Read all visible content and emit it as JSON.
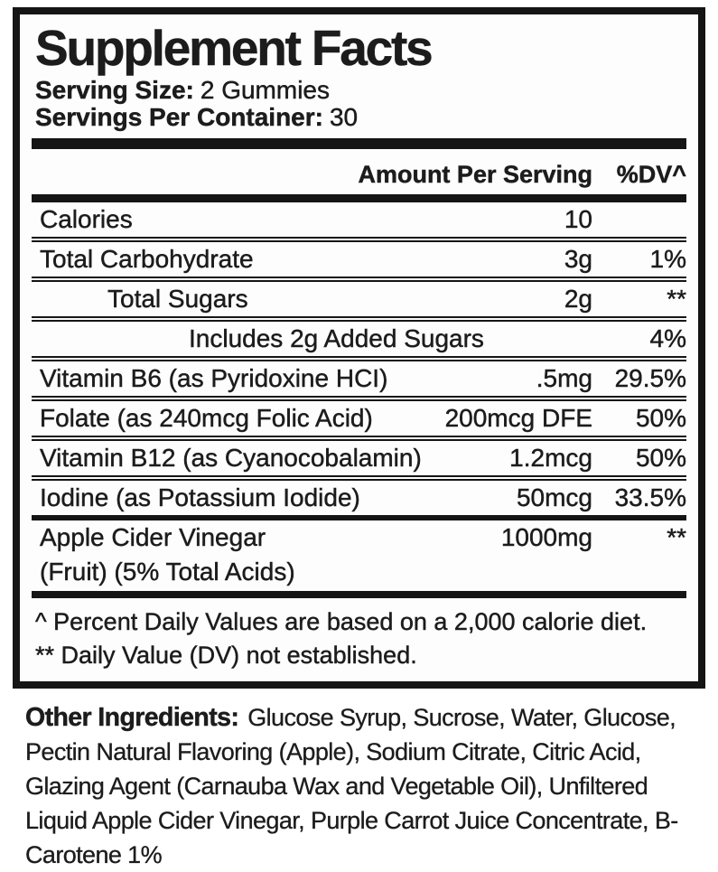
{
  "label": {
    "title": "Supplement Facts",
    "serving_size_label": "Serving Size:",
    "serving_size_value": "2 Gummies",
    "servings_per_container_label": "Servings Per Container:",
    "servings_per_container_value": "30",
    "header": {
      "amount": "Amount Per Serving",
      "dv": "%DV^"
    },
    "rows": [
      {
        "name": "Calories",
        "amount": "10",
        "dv": ""
      },
      {
        "name": "Total Carbohydrate",
        "amount": "3g",
        "dv": "1%"
      },
      {
        "name": "Total Sugars",
        "amount": "2g",
        "dv": "**"
      },
      {
        "name": "Includes 2g Added Sugars",
        "amount": "",
        "dv": "4%"
      },
      {
        "name": "Vitamin B6 (as Pyridoxine HCI)",
        "amount": ".5mg",
        "dv": "29.5%"
      },
      {
        "name": "Folate (as 240mcg Folic Acid)",
        "amount": "200mcg DFE",
        "dv": "50%"
      },
      {
        "name": "Vitamin B12 (as Cyanocobalamin)",
        "amount": "1.2mcg",
        "dv": "50%"
      },
      {
        "name": "Iodine (as Potassium Iodide)",
        "amount": "50mcg",
        "dv": "33.5%"
      },
      {
        "name_line1": "Apple Cider Vinegar",
        "name_line2": "(Fruit) (5% Total Acids)",
        "amount": "1000mg",
        "dv": "**"
      }
    ],
    "footnotes": [
      "^ Percent Daily Values are based on a 2,000 calorie diet.",
      "** Daily Value (DV) not established."
    ]
  },
  "other_ingredients": {
    "heading": "Other Ingredients:",
    "text": "Glucose Syrup, Sucrose, Water, Glucose, Pectin Natural Flavoring (Apple), Sodium Citrate, Citric Acid, Glazing Agent (Carnauba Wax and Vegetable Oil), Unfiltered Liquid Apple Cider Vinegar, Purple Carrot Juice Concentrate, B-Carotene 1%"
  },
  "colors": {
    "text": "#1c1c1c",
    "rule": "#151515",
    "background": "#fdfdfd"
  }
}
